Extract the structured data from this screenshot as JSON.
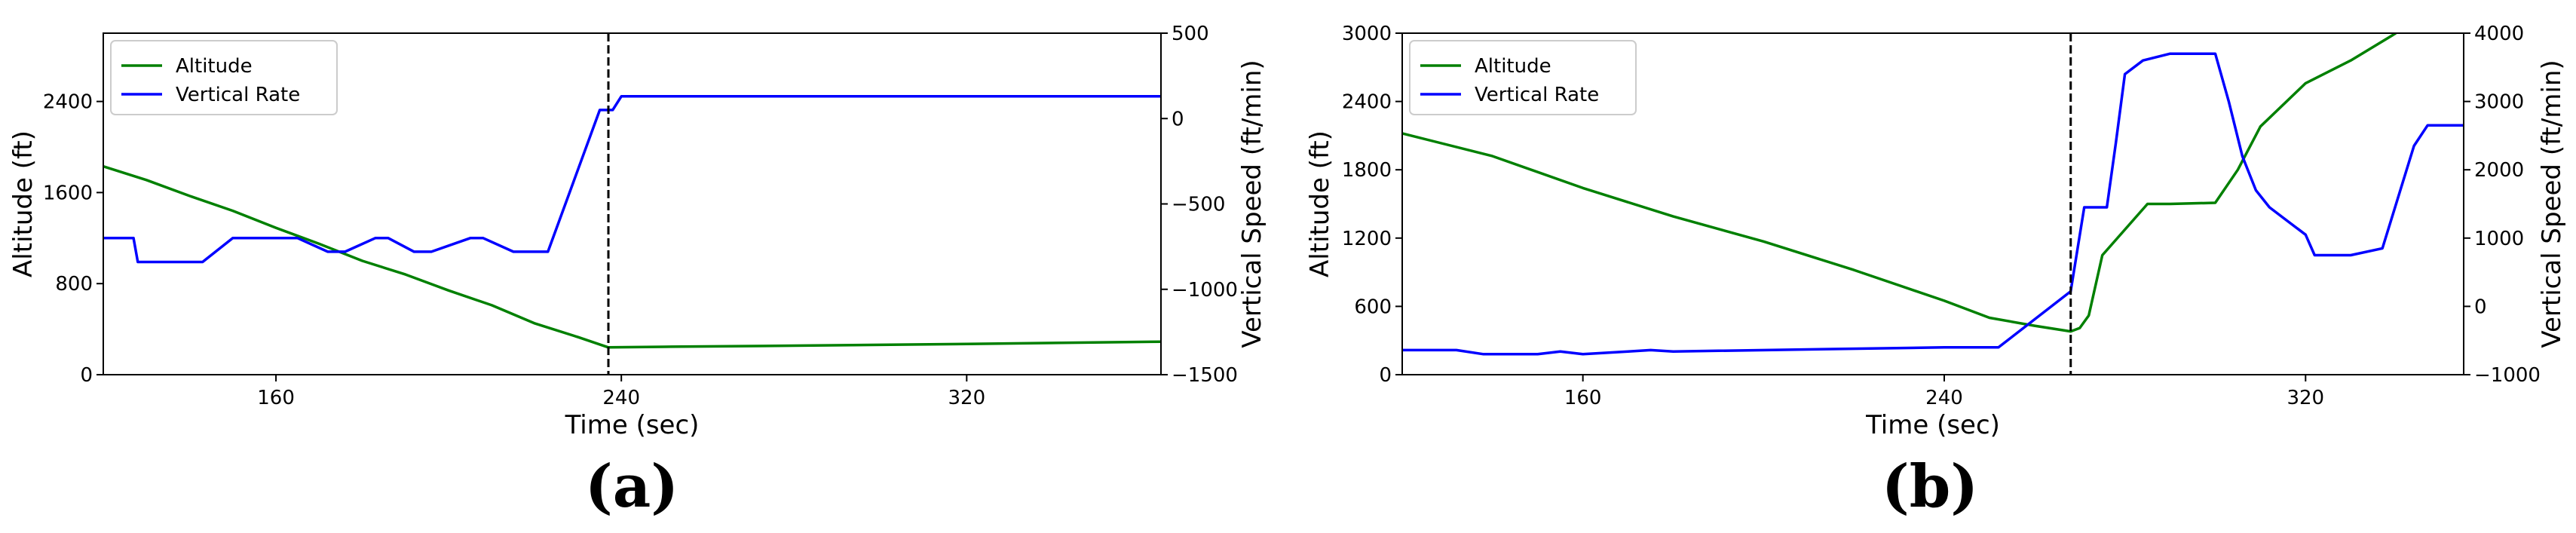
{
  "chart_data": [
    {
      "type": "line",
      "caption": "(a)",
      "xlabel": "Time (sec)",
      "ylabel": "Altitude (ft)",
      "y2label": "Vertical Speed (ft/min)",
      "xlim": [
        120,
        365
      ],
      "ylim": [
        0,
        3000
      ],
      "y2lim": [
        -1500,
        500
      ],
      "xticks": [
        160,
        240,
        320
      ],
      "yticks": [
        0,
        800,
        1600,
        2400
      ],
      "y2ticks": [
        -1500,
        -1000,
        -500,
        0,
        500
      ],
      "vline_x": 237,
      "legend_position": "top-left",
      "series": [
        {
          "name": "Altitude",
          "axis": "left",
          "color": "#008000",
          "x": [
            120,
            130,
            140,
            150,
            160,
            170,
            180,
            190,
            200,
            210,
            220,
            230,
            237,
            250,
            280,
            320,
            365
          ],
          "y": [
            1830,
            1710,
            1570,
            1440,
            1290,
            1150,
            1000,
            880,
            740,
            610,
            450,
            330,
            240,
            245,
            255,
            270,
            290
          ]
        },
        {
          "name": "Vertical Rate",
          "axis": "right",
          "color": "#0000ff",
          "x": [
            120,
            127,
            128,
            143,
            147,
            150,
            165,
            172,
            176,
            183,
            186,
            192,
            196,
            205,
            208,
            215,
            223,
            235,
            236,
            238,
            240,
            365
          ],
          "y": [
            -700,
            -700,
            -840,
            -840,
            -760,
            -700,
            -700,
            -780,
            -780,
            -700,
            -700,
            -780,
            -780,
            -700,
            -700,
            -780,
            -780,
            50,
            50,
            50,
            130,
            130
          ]
        }
      ]
    },
    {
      "type": "line",
      "caption": "(b)",
      "xlabel": "Time (sec)",
      "ylabel": "Altitude (ft)",
      "y2label": "Vertical Speed (ft/min)",
      "xlim": [
        120,
        355
      ],
      "ylim": [
        0,
        3000
      ],
      "y2lim": [
        -1000,
        4000
      ],
      "xticks": [
        160,
        240,
        320
      ],
      "yticks": [
        0,
        600,
        1200,
        1800,
        2400,
        3000
      ],
      "y2ticks": [
        -1000,
        0,
        1000,
        2000,
        3000,
        4000
      ],
      "vline_x": 268,
      "legend_position": "top-left",
      "series": [
        {
          "name": "Altitude",
          "axis": "left",
          "color": "#008000",
          "x": [
            120,
            140,
            160,
            180,
            200,
            220,
            240,
            250,
            260,
            268,
            270,
            272,
            275,
            285,
            290,
            300,
            305,
            310,
            320,
            330,
            340
          ],
          "y": [
            2120,
            1920,
            1640,
            1390,
            1170,
            920,
            650,
            500,
            430,
            380,
            410,
            520,
            1050,
            1500,
            1500,
            1510,
            1800,
            2180,
            2560,
            2760,
            3000
          ]
        },
        {
          "name": "Vertical Rate",
          "axis": "right",
          "color": "#0000ff",
          "x": [
            120,
            132,
            138,
            150,
            155,
            160,
            170,
            175,
            180,
            240,
            252,
            268,
            271,
            276,
            278,
            280,
            284,
            290,
            300,
            303,
            306,
            309,
            312,
            315,
            320,
            322,
            324,
            330,
            337,
            344,
            347,
            355
          ],
          "y": [
            -640,
            -640,
            -700,
            -700,
            -660,
            -700,
            -660,
            -640,
            -660,
            -600,
            -600,
            220,
            1450,
            1450,
            2400,
            3400,
            3600,
            3700,
            3700,
            3000,
            2200,
            1700,
            1450,
            1300,
            1050,
            750,
            750,
            750,
            850,
            2350,
            2650,
            2650
          ]
        }
      ]
    }
  ]
}
